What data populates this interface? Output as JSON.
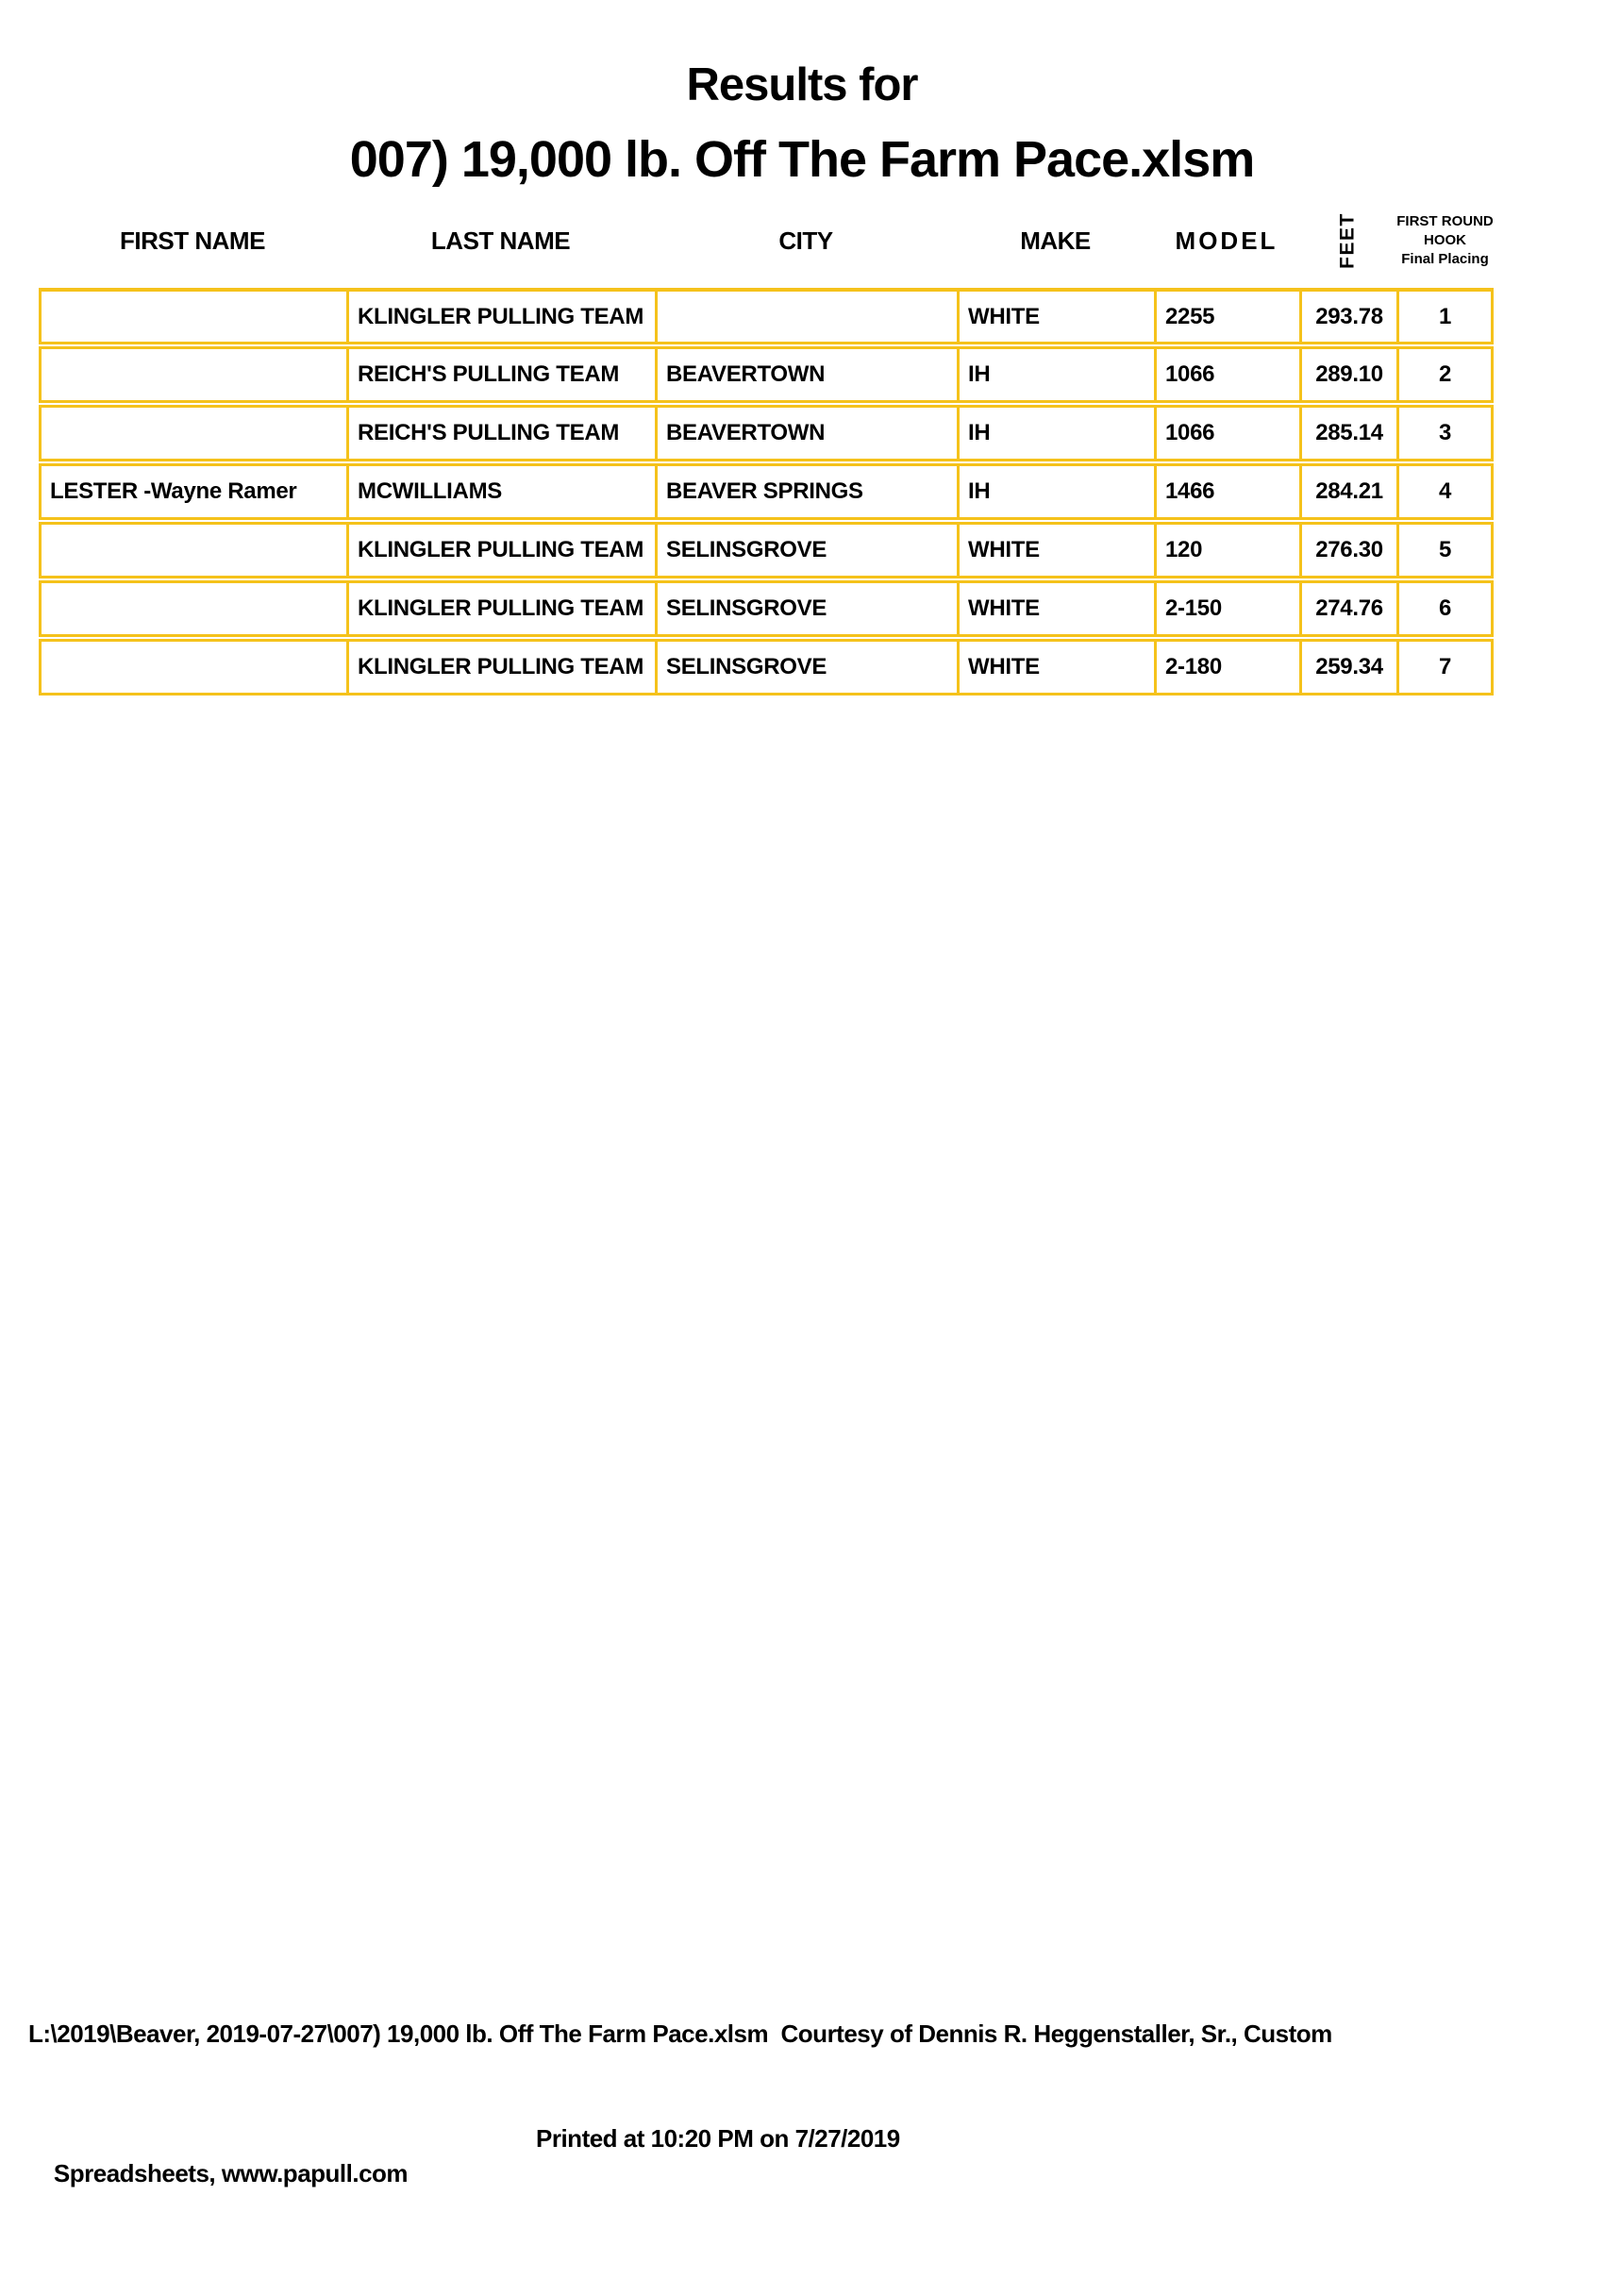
{
  "title": {
    "line1": "Results for",
    "line2": "007) 19,000 lb. Off The Farm Pace.xlsm"
  },
  "table": {
    "border_color": "#F5C21B",
    "headers": {
      "first_name": "FIRST NAME",
      "last_name": "LAST NAME",
      "city": "CITY",
      "make": "MAKE",
      "model": "MODEL",
      "feet": "FEET",
      "placing_lines": [
        "FIRST ROUND",
        "HOOK",
        "Final Placing"
      ]
    },
    "rows": [
      {
        "first_name": "",
        "last_name": "KLINGLER PULLING TEAM",
        "city": "",
        "make": "WHITE",
        "model": "2255",
        "feet": "293.78",
        "placing": "1"
      },
      {
        "first_name": "",
        "last_name": "REICH'S PULLING TEAM",
        "city": "BEAVERTOWN",
        "make": "IH",
        "model": "1066",
        "feet": "289.10",
        "placing": "2"
      },
      {
        "first_name": "",
        "last_name": "REICH'S PULLING TEAM",
        "city": "BEAVERTOWN",
        "make": "IH",
        "model": "1066",
        "feet": "285.14",
        "placing": "3"
      },
      {
        "first_name": "LESTER -Wayne Ramer",
        "last_name": "MCWILLIAMS",
        "city": "BEAVER SPRINGS",
        "make": "IH",
        "model": "1466",
        "feet": "284.21",
        "placing": "4"
      },
      {
        "first_name": "",
        "last_name": "KLINGLER PULLING TEAM",
        "city": "SELINSGROVE",
        "make": "WHITE",
        "model": "120",
        "feet": "276.30",
        "placing": "5"
      },
      {
        "first_name": "",
        "last_name": "KLINGLER PULLING TEAM",
        "city": "SELINSGROVE",
        "make": "WHITE",
        "model": "2-150",
        "feet": "274.76",
        "placing": "6"
      },
      {
        "first_name": "",
        "last_name": "KLINGLER PULLING TEAM",
        "city": "SELINSGROVE",
        "make": "WHITE",
        "model": "2-180",
        "feet": "259.34",
        "placing": "7"
      }
    ]
  },
  "footer": {
    "line1": "L:\\2019\\Beaver, 2019-07-27\\007) 19,000 lb. Off The Farm Pace.xlsm  Courtesy of Dennis R. Heggenstaller, Sr., Custom",
    "line2_left": "Spreadsheets, www.papull.com",
    "line2_right": "Printed at 10:20 PM on 7/27/2019"
  }
}
